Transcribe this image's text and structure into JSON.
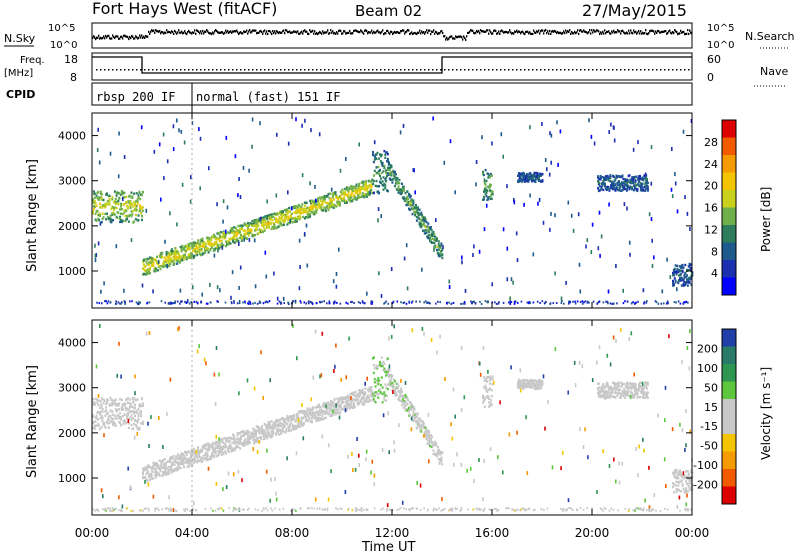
{
  "header": {
    "station": "Fort Hays West (fitACF)",
    "beam": "Beam 02",
    "date": "27/May/2015"
  },
  "top_panels": {
    "nsky_label": "N.Sky",
    "nsearch_label": "N.Search",
    "noise_ticks": [
      "10^5",
      "10^0"
    ],
    "freq_label": "Freq.",
    "freq_unit": "[MHz]",
    "freq_ticks": [
      "18",
      "8"
    ],
    "nave_label": "Nave",
    "nave_ticks": [
      "60",
      "0"
    ],
    "cpid_label": "CPID",
    "cpid_segments": [
      {
        "label": "rbsp 200 IF",
        "start_hour": 0,
        "end_hour": 4.0
      },
      {
        "label": "normal (fast) 151 IF",
        "start_hour": 4.0,
        "end_hour": 24
      }
    ],
    "freq_steps": [
      {
        "start_hour": 0,
        "end_hour": 2.0,
        "level": "high"
      },
      {
        "start_hour": 2.0,
        "end_hour": 14.0,
        "level": "low"
      },
      {
        "start_hour": 14.0,
        "end_hour": 24,
        "level": "high"
      }
    ]
  },
  "colorbars": {
    "power": {
      "label": "Power [dB]",
      "ticks": [
        "28",
        "24",
        "20",
        "16",
        "12",
        "8",
        "4"
      ],
      "colors": [
        "#dd0000",
        "#f25a00",
        "#f59a00",
        "#f3c400",
        "#c9d11d",
        "#6fb04a",
        "#2d7d5d",
        "#1e5a8c",
        "#1b2fb0",
        "#0000ff"
      ]
    },
    "velocity": {
      "label": "Velocity [m s⁻¹]",
      "ticks": [
        "200",
        "100",
        "50",
        "15",
        "-15",
        "-50",
        "-100",
        "-200"
      ],
      "colors": [
        "#2040a8",
        "#2a7a6a",
        "#2e9650",
        "#5ec63c",
        "#c8c8c8",
        "#c8c8c8",
        "#f5c400",
        "#f59a00",
        "#f25a00",
        "#dd0000"
      ]
    }
  },
  "axes": {
    "ylabel": "Slant Range [km]",
    "xlabel": "Time UT",
    "x_ticks": [
      "00:00",
      "04:00",
      "08:00",
      "12:00",
      "16:00",
      "20:00",
      "00:00"
    ],
    "y_ticks": [
      "1000",
      "2000",
      "3000",
      "4000"
    ]
  },
  "chart_data": [
    {
      "type": "heatmap",
      "title": "",
      "xlabel": "",
      "ylabel": "Slant Range [km]",
      "xlim": [
        0,
        24
      ],
      "ylim": [
        180,
        4500
      ],
      "colorbar": "Power [dB]",
      "features": [
        {
          "x": [
            0,
            2.0
          ],
          "y": [
            2100,
            2800
          ],
          "value_db": 14
        },
        {
          "x": [
            2.0,
            11.2
          ],
          "y_start": 1100,
          "y_end": 2900,
          "value_db": 16
        },
        {
          "x": [
            11.2,
            11.8
          ],
          "y": [
            2700,
            3700
          ],
          "value_db": 8
        },
        {
          "x": [
            11.8,
            14.0
          ],
          "y_start": 3300,
          "y_end": 1400,
          "value_db": 10
        },
        {
          "x": [
            15.6,
            16.0
          ],
          "y": [
            2600,
            3300
          ],
          "value_db": 10
        },
        {
          "x": [
            17.0,
            18.0
          ],
          "y": [
            3000,
            3200
          ],
          "value_db": 4
        },
        {
          "x": [
            20.2,
            22.2
          ],
          "y": [
            2800,
            3150
          ],
          "value_db": 4
        },
        {
          "x": [
            23.2,
            24.0
          ],
          "y": [
            700,
            1200
          ],
          "value_db": 4
        }
      ]
    },
    {
      "type": "heatmap",
      "title": "",
      "xlabel": "Time UT",
      "ylabel": "Slant Range [km]",
      "xlim": [
        0,
        24
      ],
      "ylim": [
        180,
        4500
      ],
      "colorbar": "Velocity [m s⁻¹]",
      "features": [
        {
          "x": [
            0,
            2.0
          ],
          "y": [
            2100,
            2800
          ],
          "velocity": 0
        },
        {
          "x": [
            2.0,
            11.2
          ],
          "y_start": 1100,
          "y_end": 2900,
          "velocity": -20
        },
        {
          "x": [
            11.2,
            11.8
          ],
          "y": [
            2700,
            3700
          ],
          "velocity": 60
        },
        {
          "x": [
            11.8,
            14.0
          ],
          "y_start": 3300,
          "y_end": 1400,
          "velocity": 40
        },
        {
          "x": [
            15.6,
            16.0
          ],
          "y": [
            2600,
            3300
          ],
          "velocity": 0
        },
        {
          "x": [
            17.0,
            18.0
          ],
          "y": [
            3000,
            3200
          ],
          "velocity": 0
        },
        {
          "x": [
            20.2,
            22.2
          ],
          "y": [
            2800,
            3150
          ],
          "velocity": 0
        },
        {
          "x": [
            23.2,
            24.0
          ],
          "y": [
            700,
            1200
          ],
          "velocity": 0
        }
      ]
    }
  ]
}
